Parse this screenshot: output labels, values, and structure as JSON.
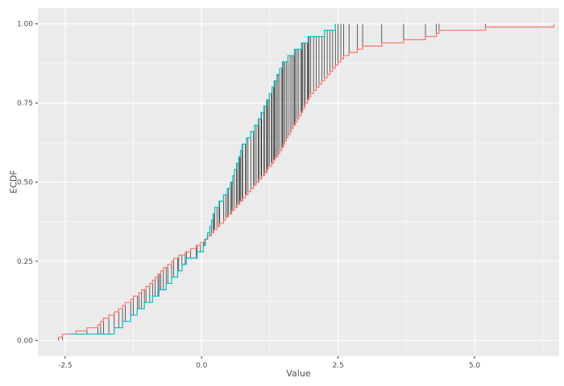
{
  "chart_data": {
    "type": "line",
    "subtype": "ecdf-step-comparison",
    "title": "",
    "xlabel": "Value",
    "ylabel": "ECDF",
    "xlim": [
      -3.0,
      6.55
    ],
    "ylim": [
      -0.05,
      1.05
    ],
    "x_tick_values": [
      -2.5,
      0.0,
      2.5,
      5.0
    ],
    "x_tick_labels": [
      "-2.5",
      "0.0",
      "2.5",
      "5.0"
    ],
    "y_tick_values": [
      0.0,
      0.25,
      0.5,
      0.75,
      1.0
    ],
    "y_tick_labels": [
      "0.00",
      "0.25",
      "0.50",
      "0.75",
      "1.00"
    ],
    "grid": {
      "major": true,
      "minor": true,
      "minor_x": [
        -1.25,
        1.25,
        3.75,
        6.25
      ],
      "minor_y": [
        0.125,
        0.375,
        0.625,
        0.875
      ]
    },
    "legend": "none",
    "colors": {
      "background": "#FFFFFF",
      "panel_background": "#EBEBEB",
      "grid": "#FFFFFF",
      "segment": "#000000",
      "tick": "#333333",
      "text": "#4D4D4D"
    },
    "series": [
      {
        "name": "red",
        "color": "#F8766D",
        "n": 100,
        "values": [
          -2.62,
          -2.55,
          -2.3,
          -2.1,
          -1.9,
          -1.85,
          -1.8,
          -1.7,
          -1.6,
          -1.52,
          -1.45,
          -1.4,
          -1.3,
          -1.25,
          -1.15,
          -1.1,
          -1.02,
          -0.95,
          -0.9,
          -0.85,
          -0.8,
          -0.75,
          -0.7,
          -0.62,
          -0.55,
          -0.51,
          -0.42,
          -0.3,
          -0.2,
          -0.1,
          -0.02,
          0.05,
          0.1,
          0.18,
          0.22,
          0.28,
          0.33,
          0.4,
          0.44,
          0.49,
          0.55,
          0.6,
          0.65,
          0.7,
          0.75,
          0.8,
          0.85,
          0.9,
          0.95,
          1.0,
          1.05,
          1.1,
          1.15,
          1.2,
          1.22,
          1.28,
          1.32,
          1.35,
          1.4,
          1.43,
          1.47,
          1.5,
          1.52,
          1.55,
          1.58,
          1.62,
          1.65,
          1.68,
          1.72,
          1.75,
          1.78,
          1.82,
          1.85,
          1.88,
          1.9,
          1.94,
          1.97,
          2.0,
          2.05,
          2.1,
          2.15,
          2.2,
          2.25,
          2.3,
          2.35,
          2.4,
          2.45,
          2.5,
          2.55,
          2.6,
          2.7,
          2.85,
          2.95,
          3.3,
          3.7,
          4.1,
          4.3,
          4.35,
          5.2,
          6.45
        ]
      },
      {
        "name": "cyan",
        "color": "#00BFC4",
        "n": 50,
        "values": [
          -2.42,
          -1.6,
          -1.45,
          -1.3,
          -1.18,
          -1.05,
          -0.9,
          -0.78,
          -0.65,
          -0.55,
          -0.44,
          -0.36,
          -0.28,
          -0.08,
          0.03,
          0.07,
          0.11,
          0.15,
          0.18,
          0.21,
          0.24,
          0.32,
          0.4,
          0.47,
          0.53,
          0.57,
          0.6,
          0.64,
          0.68,
          0.71,
          0.74,
          0.82,
          0.9,
          0.97,
          1.04,
          1.09,
          1.14,
          1.19,
          1.24,
          1.29,
          1.33,
          1.38,
          1.43,
          1.48,
          1.58,
          1.7,
          1.83,
          1.95,
          2.25,
          2.45
        ]
      }
    ],
    "difference_segments": {
      "description": "vertical black segments drawn at each sample point, spanning between the two ECDF curves",
      "color": "#000000"
    }
  }
}
